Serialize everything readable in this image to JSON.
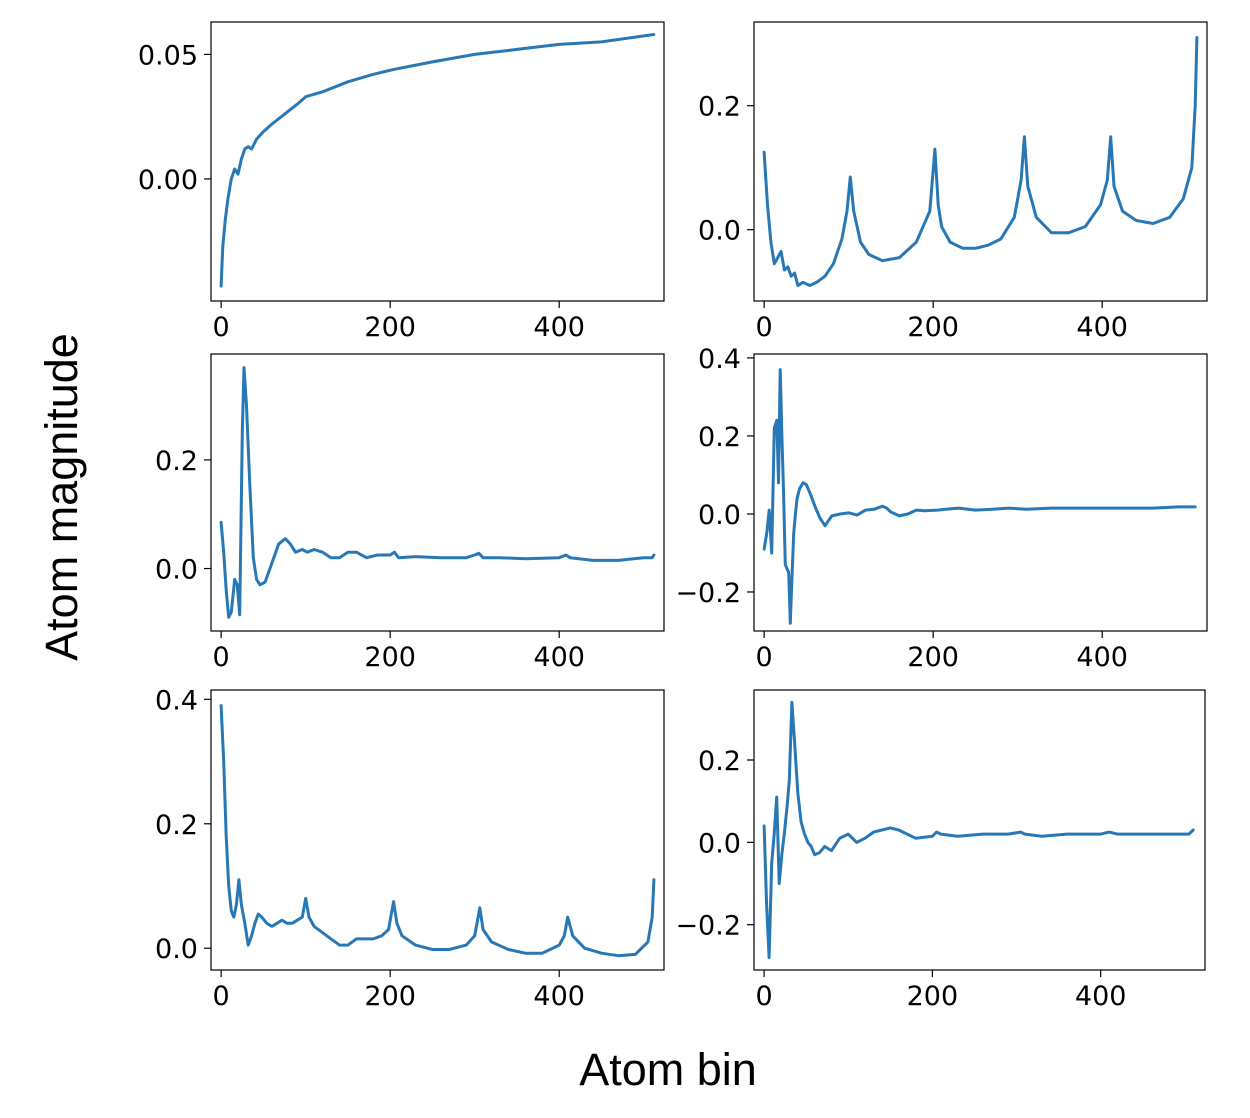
{
  "figure": {
    "xlabel": "Atom bin",
    "ylabel": "Atom magnitude",
    "line_color": "#2878b5"
  },
  "chart_data": [
    {
      "type": "line",
      "xlim": [
        -12,
        524
      ],
      "ylim": [
        -0.049,
        0.063
      ],
      "x_ticks": [
        0,
        200,
        400
      ],
      "x_tick_labels": [
        "0",
        "200",
        "400"
      ],
      "y_ticks": [
        0.0,
        0.05
      ],
      "y_tick_labels": [
        "0.00",
        "0.05"
      ],
      "series": [
        {
          "x": [
            0,
            2,
            5,
            8,
            12,
            16,
            20,
            24,
            28,
            32,
            36,
            42,
            50,
            60,
            75,
            90,
            100,
            120,
            150,
            180,
            205,
            250,
            300,
            350,
            400,
            450,
            512
          ],
          "y": [
            -0.043,
            -0.027,
            -0.016,
            -0.008,
            0.0,
            0.004,
            0.002,
            0.008,
            0.012,
            0.013,
            0.012,
            0.016,
            0.019,
            0.022,
            0.026,
            0.03,
            0.033,
            0.035,
            0.039,
            0.042,
            0.044,
            0.047,
            0.05,
            0.052,
            0.054,
            0.055,
            0.058
          ]
        }
      ]
    },
    {
      "type": "line",
      "xlim": [
        -12,
        524
      ],
      "ylim": [
        -0.115,
        0.335
      ],
      "x_ticks": [
        0,
        200,
        400
      ],
      "x_tick_labels": [
        "0",
        "200",
        "400"
      ],
      "y_ticks": [
        0.0,
        0.2
      ],
      "y_tick_labels": [
        "0.0",
        "0.2"
      ],
      "series": [
        {
          "x": [
            0,
            4,
            8,
            12,
            16,
            20,
            24,
            28,
            32,
            36,
            40,
            46,
            54,
            62,
            72,
            82,
            92,
            98,
            102,
            106,
            114,
            124,
            140,
            160,
            180,
            196,
            202,
            206,
            210,
            220,
            235,
            250,
            265,
            280,
            296,
            304,
            308,
            312,
            322,
            340,
            360,
            380,
            398,
            406,
            410,
            414,
            424,
            440,
            460,
            480,
            496,
            506,
            510,
            512
          ],
          "y": [
            0.125,
            0.04,
            -0.02,
            -0.055,
            -0.045,
            -0.035,
            -0.065,
            -0.06,
            -0.075,
            -0.07,
            -0.09,
            -0.085,
            -0.09,
            -0.085,
            -0.075,
            -0.055,
            -0.015,
            0.03,
            0.085,
            0.03,
            -0.02,
            -0.04,
            -0.05,
            -0.045,
            -0.02,
            0.03,
            0.13,
            0.04,
            0.005,
            -0.02,
            -0.03,
            -0.03,
            -0.025,
            -0.015,
            0.02,
            0.08,
            0.15,
            0.07,
            0.02,
            -0.005,
            -0.005,
            0.005,
            0.04,
            0.08,
            0.15,
            0.07,
            0.03,
            0.015,
            0.01,
            0.02,
            0.05,
            0.1,
            0.2,
            0.31
          ]
        }
      ]
    },
    {
      "type": "line",
      "xlim": [
        -12,
        524
      ],
      "ylim": [
        -0.115,
        0.395
      ],
      "x_ticks": [
        0,
        200,
        400
      ],
      "x_tick_labels": [
        "0",
        "200",
        "400"
      ],
      "y_ticks": [
        0.0,
        0.2
      ],
      "y_tick_labels": [
        "0.0",
        "0.2"
      ],
      "series": [
        {
          "x": [
            0,
            3,
            6,
            9,
            12,
            16,
            19,
            22,
            25,
            27,
            30,
            34,
            38,
            42,
            46,
            52,
            60,
            68,
            76,
            82,
            88,
            96,
            102,
            110,
            120,
            130,
            140,
            150,
            160,
            172,
            185,
            200,
            205,
            210,
            230,
            260,
            290,
            300,
            305,
            310,
            330,
            360,
            400,
            408,
            413,
            440,
            470,
            500,
            510,
            512
          ],
          "y": [
            0.085,
            0.03,
            -0.04,
            -0.09,
            -0.08,
            -0.02,
            -0.03,
            -0.085,
            0.25,
            0.37,
            0.3,
            0.15,
            0.02,
            -0.02,
            -0.03,
            -0.025,
            0.01,
            0.045,
            0.055,
            0.045,
            0.03,
            0.035,
            0.03,
            0.035,
            0.03,
            0.02,
            0.02,
            0.03,
            0.03,
            0.02,
            0.025,
            0.025,
            0.03,
            0.02,
            0.022,
            0.02,
            0.02,
            0.025,
            0.028,
            0.02,
            0.02,
            0.018,
            0.02,
            0.025,
            0.02,
            0.015,
            0.015,
            0.02,
            0.02,
            0.025
          ]
        }
      ]
    },
    {
      "type": "line",
      "xlim": [
        -12,
        524
      ],
      "ylim": [
        -0.3,
        0.41
      ],
      "x_ticks": [
        0,
        200,
        400
      ],
      "x_tick_labels": [
        "0",
        "200",
        "400"
      ],
      "y_ticks": [
        -0.2,
        0.0,
        0.2,
        0.4
      ],
      "y_tick_labels": [
        "−0.2",
        "0.0",
        "0.2",
        "0.4"
      ],
      "series": [
        {
          "x": [
            0,
            3,
            6,
            9,
            12,
            15,
            17,
            19,
            21,
            23,
            25,
            27,
            29,
            31,
            33,
            35,
            37,
            39,
            42,
            46,
            50,
            55,
            60,
            66,
            72,
            80,
            90,
            100,
            110,
            120,
            130,
            140,
            145,
            150,
            160,
            170,
            180,
            190,
            205,
            215,
            230,
            250,
            270,
            290,
            310,
            340,
            370,
            400,
            430,
            460,
            490,
            510
          ],
          "y": [
            -0.09,
            -0.05,
            0.01,
            -0.1,
            0.22,
            0.24,
            0.08,
            0.37,
            0.2,
            0.05,
            -0.13,
            -0.14,
            -0.15,
            -0.28,
            -0.16,
            -0.05,
            0.0,
            0.04,
            0.065,
            0.08,
            0.075,
            0.05,
            0.02,
            -0.01,
            -0.03,
            -0.005,
            0.0,
            0.003,
            -0.003,
            0.01,
            0.012,
            0.02,
            0.015,
            0.005,
            -0.005,
            0.0,
            0.01,
            0.008,
            0.01,
            0.012,
            0.015,
            0.01,
            0.012,
            0.015,
            0.012,
            0.015,
            0.015,
            0.015,
            0.015,
            0.015,
            0.018,
            0.018
          ]
        }
      ]
    },
    {
      "type": "line",
      "xlim": [
        -12,
        524
      ],
      "ylim": [
        -0.035,
        0.415
      ],
      "x_ticks": [
        0,
        200,
        400
      ],
      "x_tick_labels": [
        "0",
        "200",
        "400"
      ],
      "y_ticks": [
        0.0,
        0.2,
        0.4
      ],
      "y_tick_labels": [
        "0.0",
        "0.2",
        "0.4"
      ],
      "series": [
        {
          "x": [
            0,
            3,
            6,
            9,
            12,
            15,
            18,
            21,
            24,
            28,
            32,
            36,
            40,
            44,
            48,
            54,
            60,
            66,
            72,
            78,
            84,
            90,
            96,
            100,
            104,
            110,
            120,
            130,
            140,
            150,
            160,
            170,
            180,
            190,
            198,
            204,
            208,
            214,
            230,
            250,
            270,
            290,
            300,
            306,
            310,
            320,
            340,
            360,
            380,
            400,
            406,
            410,
            416,
            430,
            450,
            470,
            490,
            505,
            510,
            512
          ],
          "y": [
            0.39,
            0.3,
            0.18,
            0.1,
            0.06,
            0.05,
            0.07,
            0.11,
            0.07,
            0.04,
            0.005,
            0.02,
            0.04,
            0.055,
            0.05,
            0.04,
            0.035,
            0.04,
            0.045,
            0.04,
            0.04,
            0.045,
            0.05,
            0.08,
            0.05,
            0.035,
            0.025,
            0.015,
            0.005,
            0.005,
            0.015,
            0.015,
            0.015,
            0.02,
            0.03,
            0.075,
            0.04,
            0.02,
            0.005,
            -0.002,
            -0.002,
            0.005,
            0.02,
            0.065,
            0.03,
            0.01,
            -0.002,
            -0.008,
            -0.008,
            0.005,
            0.02,
            0.05,
            0.02,
            0.0,
            -0.008,
            -0.012,
            -0.01,
            0.01,
            0.05,
            0.11
          ]
        }
      ]
    },
    {
      "type": "line",
      "xlim": [
        -12,
        524
      ],
      "ylim": [
        -0.31,
        0.37
      ],
      "x_ticks": [
        0,
        200,
        400
      ],
      "x_tick_labels": [
        "0",
        "200",
        "400"
      ],
      "y_ticks": [
        -0.2,
        0.0,
        0.2
      ],
      "y_tick_labels": [
        "−0.2",
        "0.0",
        "0.2"
      ],
      "series": [
        {
          "x": [
            0,
            3,
            6,
            9,
            12,
            15,
            18,
            21,
            24,
            27,
            30,
            33,
            36,
            40,
            44,
            48,
            52,
            56,
            60,
            66,
            72,
            80,
            90,
            100,
            110,
            120,
            130,
            140,
            150,
            160,
            170,
            180,
            200,
            205,
            210,
            230,
            260,
            290,
            305,
            310,
            330,
            360,
            400,
            410,
            420,
            450,
            480,
            505,
            510
          ],
          "y": [
            0.04,
            -0.15,
            -0.28,
            -0.05,
            0.02,
            0.11,
            -0.1,
            -0.03,
            0.02,
            0.08,
            0.15,
            0.34,
            0.25,
            0.12,
            0.05,
            0.02,
            0.0,
            -0.01,
            -0.03,
            -0.025,
            -0.01,
            -0.02,
            0.01,
            0.02,
            0.0,
            0.01,
            0.025,
            0.03,
            0.035,
            0.03,
            0.02,
            0.01,
            0.015,
            0.025,
            0.02,
            0.015,
            0.02,
            0.02,
            0.025,
            0.02,
            0.015,
            0.02,
            0.02,
            0.025,
            0.02,
            0.02,
            0.02,
            0.02,
            0.03
          ]
        }
      ]
    }
  ]
}
